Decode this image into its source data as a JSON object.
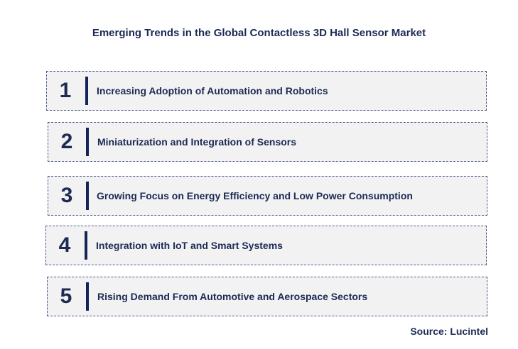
{
  "title": "Emerging Trends in the Global Contactless 3D Hall Sensor Market",
  "trends": [
    {
      "number": "1",
      "label": "Increasing Adoption  of Automation  and Robotics"
    },
    {
      "number": "2",
      "label": "Miniaturization and Integration of Sensors"
    },
    {
      "number": "3",
      "label": "Growing Focus on Energy Efficiency and Low Power Consumption"
    },
    {
      "number": "4",
      "label": "Integration with IoT and Smart  Systems"
    },
    {
      "number": "5",
      "label": "Rising Demand From Automotive and Aerospace  Sectors"
    }
  ],
  "source": "Source: Lucintel",
  "colors": {
    "text": "#1c2a55",
    "bar": "#14245a",
    "box_fill": "#f2f2f2",
    "box_border": "#4a5a8a"
  }
}
